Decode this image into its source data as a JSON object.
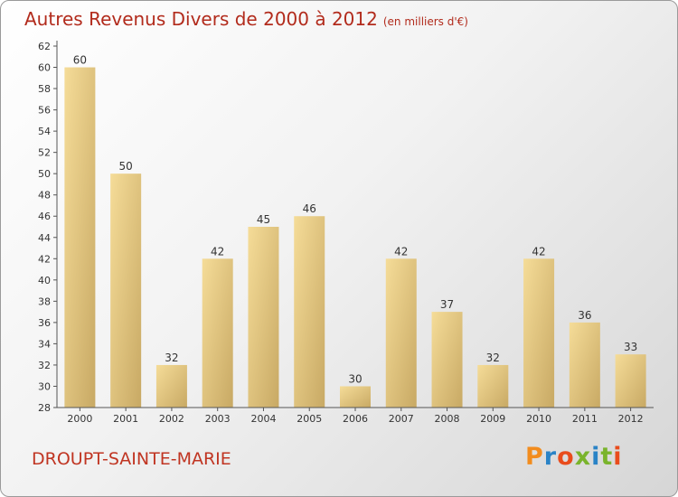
{
  "header": {
    "title": "Autres Revenus Divers de 2000 à 2012",
    "subtitle": "(en milliers d'€)"
  },
  "footer": {
    "city": "DROUPT-SAINTE-MARIE",
    "logo": "Proxiti",
    "logo_colors": [
      "#f28c1e",
      "#2a83c6",
      "#e94c1c",
      "#7ab42c",
      "#2a83c6",
      "#7ab42c",
      "#e94c1c"
    ]
  },
  "colors": {
    "bar_light": "#f5dc98",
    "bar_dark": "#c8a964",
    "axis": "#555555",
    "title": "#b22b1c"
  },
  "chart_data": {
    "type": "bar",
    "title": "Autres Revenus Divers de 2000 à 2012",
    "subtitle": "(en milliers d'€)",
    "categories": [
      "2000",
      "2001",
      "2002",
      "2003",
      "2004",
      "2005",
      "2006",
      "2007",
      "2008",
      "2009",
      "2010",
      "2011",
      "2012"
    ],
    "values": [
      60,
      50,
      32,
      42,
      45,
      46,
      30,
      42,
      37,
      32,
      42,
      36,
      33
    ],
    "data_labels": [
      "60",
      "50",
      "32",
      "42",
      "45",
      "46",
      "30",
      "42",
      "37",
      "32",
      "42",
      "36",
      "33"
    ],
    "ylim": [
      28,
      62
    ],
    "yticks": [
      "28",
      "30",
      "32",
      "34",
      "36",
      "38",
      "40",
      "42",
      "44",
      "46",
      "48",
      "50",
      "52",
      "54",
      "56",
      "58",
      "60",
      "62"
    ],
    "grid": false,
    "legend": "none"
  }
}
